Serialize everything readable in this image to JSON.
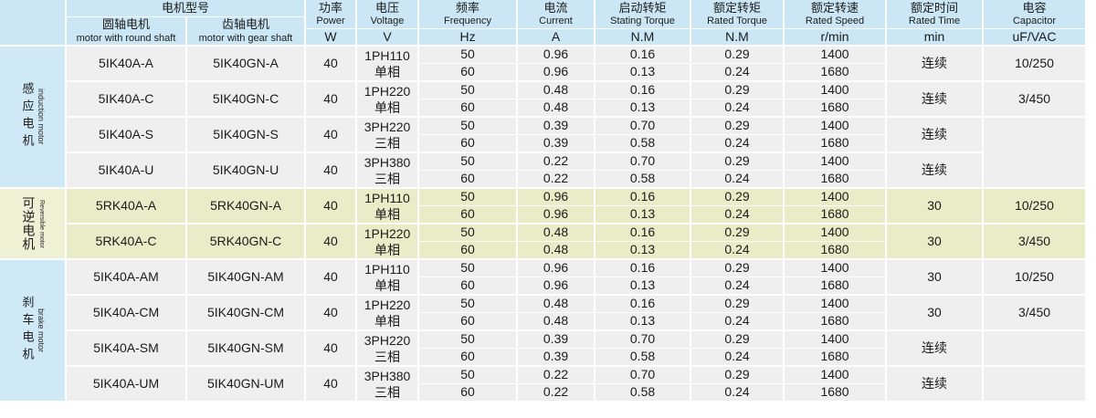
{
  "table": {
    "header": {
      "model_group": "电机型号",
      "round_shaft": {
        "zh": "圆轴电机",
        "en": "motor with round shaft"
      },
      "gear_shaft": {
        "zh": "齿轴电机",
        "en": "motor with gear shaft"
      },
      "cols": [
        {
          "zh": "功率",
          "en": "Power",
          "unit": "W"
        },
        {
          "zh": "电压",
          "en": "Voltage",
          "unit": "V"
        },
        {
          "zh": "频率",
          "en": "Frequency",
          "unit": "Hz"
        },
        {
          "zh": "电流",
          "en": "Current",
          "unit": "A"
        },
        {
          "zh": "启动转矩",
          "en": "Stating Torque",
          "unit": "N.M"
        },
        {
          "zh": "额定转矩",
          "en": "Rated Torque",
          "unit": "N.M"
        },
        {
          "zh": "额定转速",
          "en": "Rated Speed",
          "unit": "r/min"
        },
        {
          "zh": "额定时间",
          "en": "Rated Time",
          "unit": "min"
        },
        {
          "zh": "电容",
          "en": "Capacitor",
          "unit": "uF/VAC"
        }
      ]
    },
    "colors": {
      "header_blue": "#cbe7f5",
      "label_blue": "#cfe9f7",
      "row_gray": "#f0efef",
      "row_green": "#e9edc7",
      "label_green": "#eff1d4",
      "divider": "#ffffff"
    },
    "sections": [
      {
        "label_zh": "感应电机",
        "label_en": "induction motor",
        "theme": "blue",
        "rows": [
          {
            "round": "5IK40A-A",
            "gear": "5IK40GN-A",
            "power": "40",
            "voltage": [
              "1PH110",
              "单相"
            ],
            "freq": [
              "50",
              "60"
            ],
            "current": [
              "0.96",
              "0.96"
            ],
            "stating": [
              "0.16",
              "0.13"
            ],
            "torque": [
              "0.29",
              "0.24"
            ],
            "speed": [
              "1400",
              "1680"
            ],
            "time": "连续",
            "capacitor": "10/250"
          },
          {
            "round": "5IK40A-C",
            "gear": "5IK40GN-C",
            "power": "40",
            "voltage": [
              "1PH220",
              "单相"
            ],
            "freq": [
              "50",
              "60"
            ],
            "current": [
              "0.48",
              "0.48"
            ],
            "stating": [
              "0.16",
              "0.13"
            ],
            "torque": [
              "0.29",
              "0.24"
            ],
            "speed": [
              "1400",
              "1680"
            ],
            "time": "连续",
            "capacitor": "3/450"
          },
          {
            "round": "5IK40A-S",
            "gear": "5IK40GN-S",
            "power": "40",
            "voltage": [
              "3PH220",
              "三相"
            ],
            "freq": [
              "50",
              "60"
            ],
            "current": [
              "0.39",
              "0.39"
            ],
            "stating": [
              "0.70",
              "0.58"
            ],
            "torque": [
              "0.29",
              "0.24"
            ],
            "speed": [
              "1400",
              "1680"
            ],
            "time": "连续",
            "capacitor": "",
            "cap_rows": 2
          },
          {
            "round": "5IK40A-U",
            "gear": "5IK40GN-U",
            "power": "40",
            "voltage": [
              "3PH380",
              "三相"
            ],
            "freq": [
              "50",
              "60"
            ],
            "current": [
              "0.22",
              "0.22"
            ],
            "stating": [
              "0.70",
              "0.58"
            ],
            "torque": [
              "0.29",
              "0.24"
            ],
            "speed": [
              "1400",
              "1680"
            ],
            "time": "连续",
            "cap_merged": true
          }
        ]
      },
      {
        "label_zh": "可逆电机",
        "label_en": "Reversible motor",
        "theme": "green",
        "rows": [
          {
            "round": "5RK40A-A",
            "gear": "5RK40GN-A",
            "power": "40",
            "voltage": [
              "1PH110",
              "单相"
            ],
            "freq": [
              "50",
              "60"
            ],
            "current": [
              "0.96",
              "0.96"
            ],
            "stating": [
              "0.16",
              "0.13"
            ],
            "torque": [
              "0.29",
              "0.24"
            ],
            "speed": [
              "1400",
              "1680"
            ],
            "time": "30",
            "capacitor": "10/250"
          },
          {
            "round": "5RK40A-C",
            "gear": "5RK40GN-C",
            "power": "40",
            "voltage": [
              "1PH220",
              "单相"
            ],
            "freq": [
              "50",
              "60"
            ],
            "current": [
              "0.48",
              "0.48"
            ],
            "stating": [
              "0.16",
              "0.13"
            ],
            "torque": [
              "0.29",
              "0.24"
            ],
            "speed": [
              "1400",
              "1680"
            ],
            "time": "30",
            "capacitor": "3/450"
          }
        ]
      },
      {
        "label_zh": "刹车电机",
        "label_en": "brake motor",
        "theme": "blue",
        "rows": [
          {
            "round": "5IK40A-AM",
            "gear": "5IK40GN-AM",
            "power": "40",
            "voltage": [
              "1PH110",
              "单相"
            ],
            "freq": [
              "50",
              "60"
            ],
            "current": [
              "0.96",
              "0.96"
            ],
            "stating": [
              "0.16",
              "0.13"
            ],
            "torque": [
              "0.29",
              "0.24"
            ],
            "speed": [
              "1400",
              "1680"
            ],
            "time": "30",
            "capacitor": "10/250"
          },
          {
            "round": "5IK40A-CM",
            "gear": "5IK40GN-CM",
            "power": "40",
            "voltage": [
              "1PH220",
              "单相"
            ],
            "freq": [
              "50",
              "60"
            ],
            "current": [
              "0.48",
              "0.48"
            ],
            "stating": [
              "0.16",
              "0.13"
            ],
            "torque": [
              "0.29",
              "0.24"
            ],
            "speed": [
              "1400",
              "1680"
            ],
            "time": "30",
            "capacitor": "3/450"
          },
          {
            "round": "5IK40A-SM",
            "gear": "5IK40GN-SM",
            "power": "40",
            "voltage": [
              "3PH220",
              "三相"
            ],
            "freq": [
              "50",
              "60"
            ],
            "current": [
              "0.39",
              "0.39"
            ],
            "stating": [
              "0.70",
              "0.58"
            ],
            "torque": [
              "0.29",
              "0.24"
            ],
            "speed": [
              "1400",
              "1680"
            ],
            "time": "连续",
            "capacitor": ""
          },
          {
            "round": "5IK40A-UM",
            "gear": "5IK40GN-UM",
            "power": "40",
            "voltage": [
              "3PH380",
              "三相"
            ],
            "freq": [
              "50",
              "60"
            ],
            "current": [
              "0.22",
              "0.22"
            ],
            "stating": [
              "0.70",
              "0.58"
            ],
            "torque": [
              "0.29",
              "0.24"
            ],
            "speed": [
              "1400",
              "1680"
            ],
            "time": "连续",
            "capacitor": ""
          }
        ]
      }
    ]
  }
}
